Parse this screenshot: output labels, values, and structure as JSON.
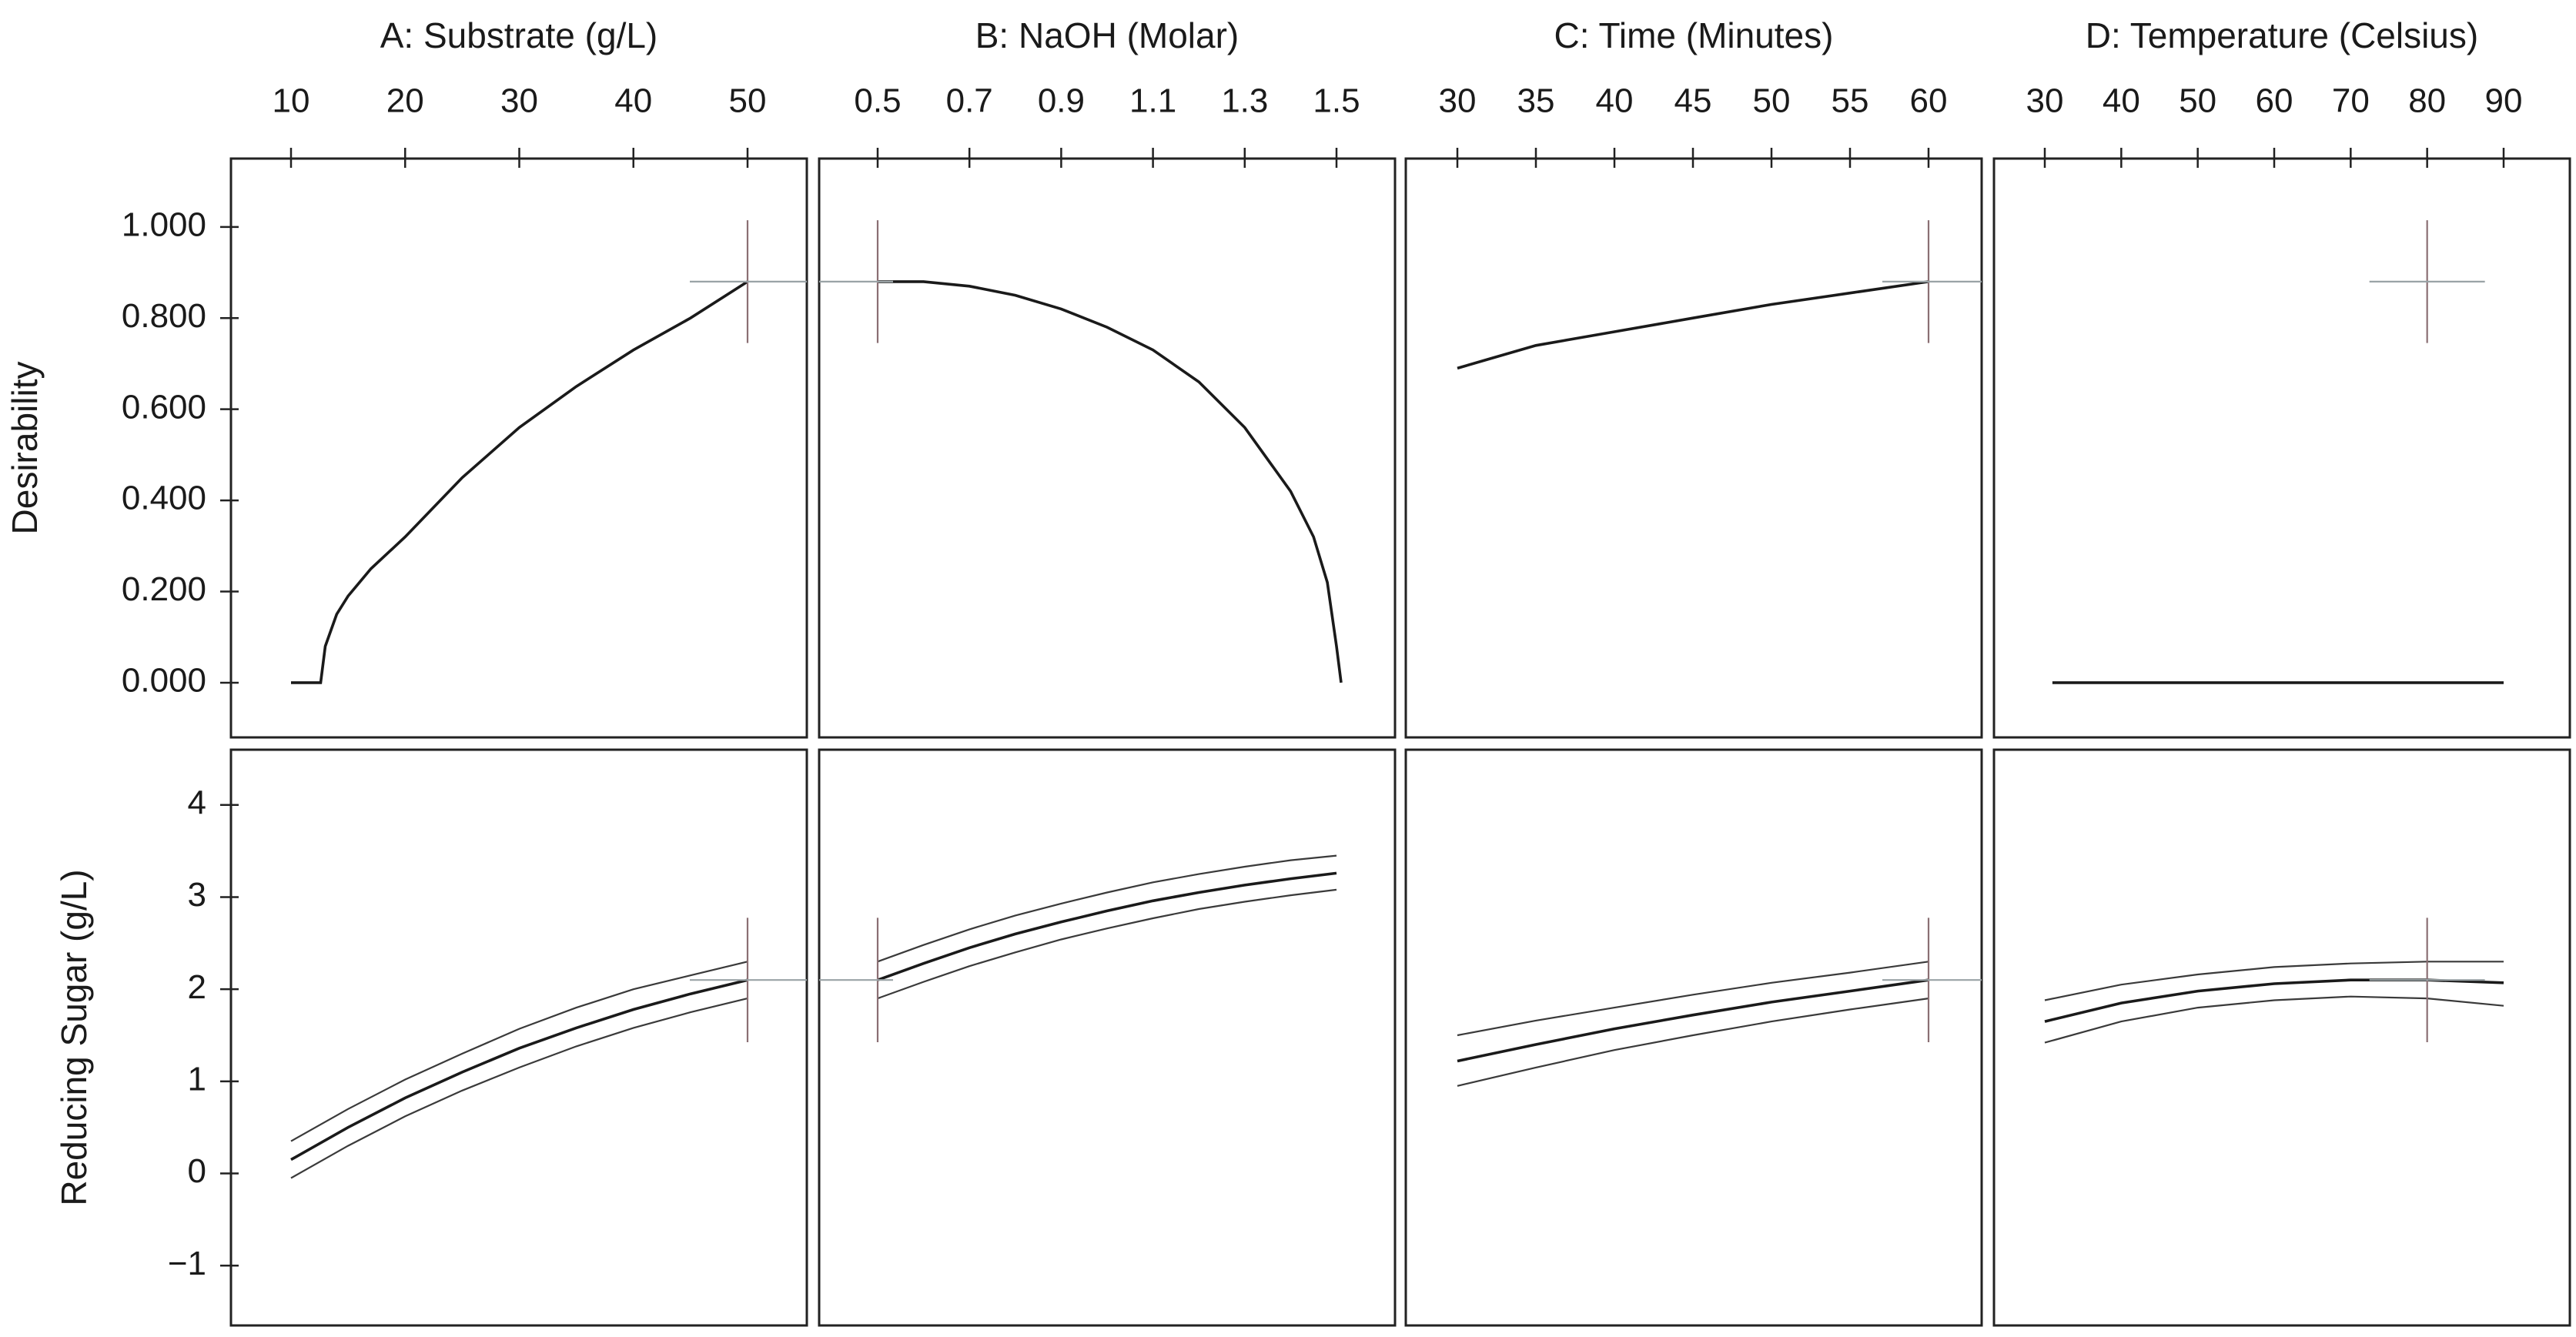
{
  "chart_data": {
    "type": "line",
    "columns": [
      {
        "title": "A: Substrate (g/L)",
        "x_ticks": [
          10,
          20,
          30,
          40,
          50
        ],
        "x_range": [
          10,
          50
        ],
        "current_x": 50
      },
      {
        "title": "B: NaOH (Molar)",
        "x_ticks": [
          "0.5",
          "0.7",
          "0.9",
          "1.1",
          "1.3",
          "1.5"
        ],
        "x_range": [
          0.5,
          1.5
        ],
        "current_x": 0.5
      },
      {
        "title": "C: Time (Minutes)",
        "x_ticks": [
          30,
          35,
          40,
          45,
          50,
          55,
          60
        ],
        "x_range": [
          30,
          60
        ],
        "current_x": 60
      },
      {
        "title": "D: Temperature (Celsius)",
        "x_ticks": [
          30,
          40,
          50,
          60,
          70,
          80,
          90
        ],
        "x_range": [
          30,
          90
        ],
        "current_x": 80
      }
    ],
    "rows": [
      {
        "ylabel": "Desirability",
        "y_ticks": [
          "0.000",
          "0.200",
          "0.400",
          "0.600",
          "0.800",
          "1.000"
        ],
        "y_range": [
          -0.12,
          1.15
        ],
        "current_y": 0.88,
        "series": [
          {
            "x": [
              10,
              12.6,
              13,
              14,
              15,
              17,
              20,
              25,
              30,
              35,
              40,
              45,
              50
            ],
            "y": [
              0,
              0,
              0.08,
              0.15,
              0.19,
              0.25,
              0.32,
              0.45,
              0.56,
              0.65,
              0.73,
              0.8,
              0.88
            ]
          },
          {
            "x": [
              0.5,
              0.6,
              0.7,
              0.8,
              0.9,
              1.0,
              1.1,
              1.2,
              1.3,
              1.4,
              1.45,
              1.48,
              1.5,
              1.51
            ],
            "y": [
              0.88,
              0.88,
              0.87,
              0.85,
              0.82,
              0.78,
              0.73,
              0.66,
              0.56,
              0.42,
              0.32,
              0.22,
              0.08,
              0.0
            ]
          },
          {
            "x": [
              30,
              32,
              35,
              40,
              45,
              50,
              55,
              60
            ],
            "y": [
              0.69,
              0.71,
              0.74,
              0.77,
              0.8,
              0.83,
              0.855,
              0.88
            ]
          },
          {
            "x": [
              31,
              90
            ],
            "y": [
              0,
              0
            ]
          }
        ]
      },
      {
        "ylabel": "Reducing Sugar (g/L)",
        "y_ticks": [
          "−1",
          "0",
          "1",
          "2",
          "3",
          "4"
        ],
        "y_range": [
          -1.65,
          4.6
        ],
        "current_y": 2.1,
        "series": [
          {
            "x": [
              10,
              15,
              20,
              25,
              30,
              35,
              40,
              45,
              50
            ],
            "y": [
              0.15,
              0.5,
              0.82,
              1.1,
              1.36,
              1.58,
              1.78,
              1.95,
              2.1
            ],
            "lower": [
              -0.05,
              0.3,
              0.62,
              0.9,
              1.15,
              1.38,
              1.58,
              1.75,
              1.9
            ],
            "upper": [
              0.35,
              0.7,
              1.02,
              1.3,
              1.57,
              1.8,
              2.0,
              2.15,
              2.3
            ]
          },
          {
            "x": [
              0.5,
              0.6,
              0.7,
              0.8,
              0.9,
              1.0,
              1.1,
              1.2,
              1.3,
              1.4,
              1.5
            ],
            "y": [
              2.1,
              2.28,
              2.45,
              2.6,
              2.73,
              2.85,
              2.96,
              3.05,
              3.13,
              3.2,
              3.26
            ],
            "lower": [
              1.9,
              2.08,
              2.25,
              2.4,
              2.54,
              2.66,
              2.77,
              2.87,
              2.95,
              3.02,
              3.08
            ],
            "upper": [
              2.3,
              2.48,
              2.65,
              2.8,
              2.93,
              3.05,
              3.16,
              3.25,
              3.33,
              3.4,
              3.45
            ]
          },
          {
            "x": [
              30,
              35,
              40,
              45,
              50,
              55,
              60
            ],
            "y": [
              1.22,
              1.4,
              1.57,
              1.72,
              1.86,
              1.98,
              2.1
            ],
            "lower": [
              0.95,
              1.15,
              1.34,
              1.5,
              1.65,
              1.78,
              1.9
            ],
            "upper": [
              1.5,
              1.66,
              1.8,
              1.94,
              2.07,
              2.18,
              2.3
            ]
          },
          {
            "x": [
              30,
              40,
              50,
              60,
              70,
              80,
              90
            ],
            "y": [
              1.65,
              1.85,
              1.98,
              2.06,
              2.1,
              2.1,
              2.07
            ],
            "lower": [
              1.42,
              1.65,
              1.8,
              1.88,
              1.92,
              1.9,
              1.82
            ],
            "upper": [
              1.88,
              2.05,
              2.16,
              2.24,
              2.28,
              2.3,
              2.3
            ]
          }
        ]
      }
    ]
  }
}
